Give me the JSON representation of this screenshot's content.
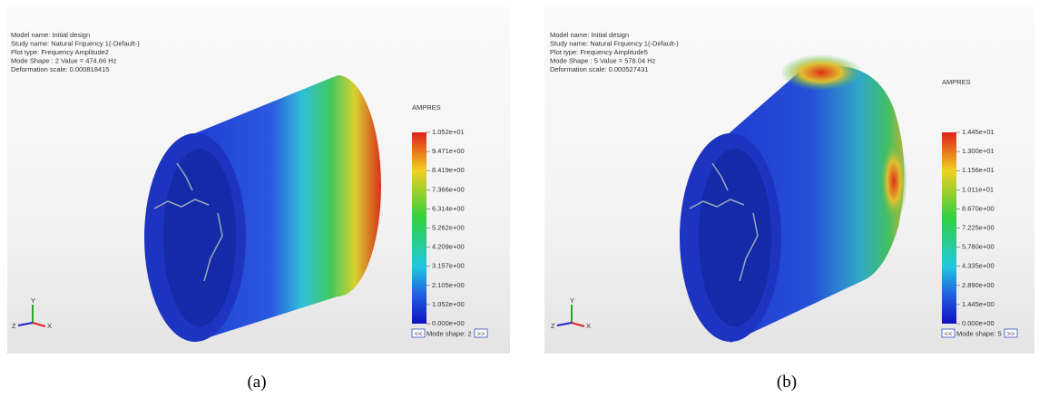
{
  "panels": [
    {
      "info": [
        "Model name: Initial design",
        "Study name: Natural Frquency 1(-Default-)",
        "Plot type: Frequency Amplitude2",
        "Mode Shape : 2  Value =      474.66 Hz",
        "Deformation scale: 0.000818415"
      ],
      "legend_title": "AMPRES",
      "ticks": [
        "1.052e+01",
        "9.471e+00",
        "8.419e+00",
        "7.366e+00",
        "6.314e+00",
        "5.262e+00",
        "4.209e+00",
        "3.157e+00",
        "2.105e+00",
        "1.052e+00",
        "0.000e+00"
      ],
      "nav": {
        "prev": "<<",
        "label": "Mode shape: 2",
        "next": ">>"
      },
      "triad": {
        "y": "Y",
        "z": "Z",
        "x": "X"
      },
      "caption": "(a)"
    },
    {
      "info": [
        "Model name: Initial design",
        "Study name: Natural Frquency 1(-Default-)",
        "Plot type: Frequency Amplitude5",
        "Mode Shape : 5  Value =      578.04 Hz",
        "Deformation scale: 0.000527431"
      ],
      "legend_title": "AMPRES",
      "ticks": [
        "1.445e+01",
        "1.300e+01",
        "1.156e+01",
        "1.011e+01",
        "8.670e+00",
        "7.225e+00",
        "5.780e+00",
        "4.335e+00",
        "2.890e+00",
        "1.445e+00",
        "0.000e+00"
      ],
      "nav": {
        "prev": "<<",
        "label": "Mode shape: 5",
        "next": ">>"
      },
      "triad": {
        "y": "Y",
        "z": "Z",
        "x": "X"
      },
      "caption": "(b)"
    }
  ]
}
